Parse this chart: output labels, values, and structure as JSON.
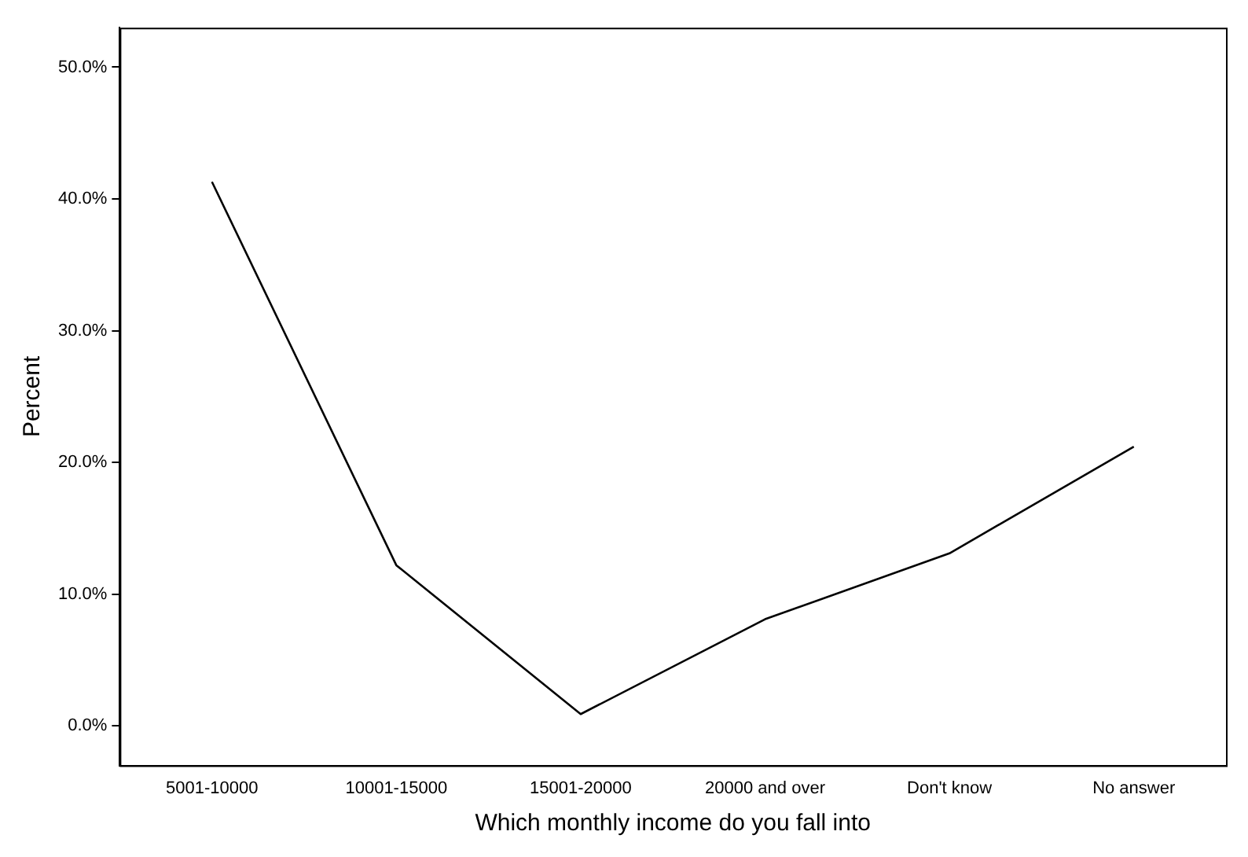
{
  "chart_data": {
    "type": "line",
    "xlabel": "Which monthly income do you fall into",
    "ylabel": "Percent",
    "categories": [
      "5001-10000",
      "10001-15000",
      "15001-20000",
      "20000 and over",
      "Don't know",
      "No answer"
    ],
    "series": [
      {
        "color": "#000000",
        "values": [
          41.3,
          12.2,
          0.9,
          8.1,
          13.1,
          21.2
        ]
      }
    ],
    "ylim": [
      -3,
      53
    ],
    "yticks": [
      {
        "value": 0,
        "label": "0.0%"
      },
      {
        "value": 10,
        "label": "10.0%"
      },
      {
        "value": 20,
        "label": "20.0%"
      },
      {
        "value": 30,
        "label": "30.0%"
      },
      {
        "value": 40,
        "label": "40.0%"
      },
      {
        "value": 50,
        "label": "50.0%"
      }
    ],
    "grid": false,
    "legend": false,
    "marker": "none",
    "line_style": "solid"
  }
}
